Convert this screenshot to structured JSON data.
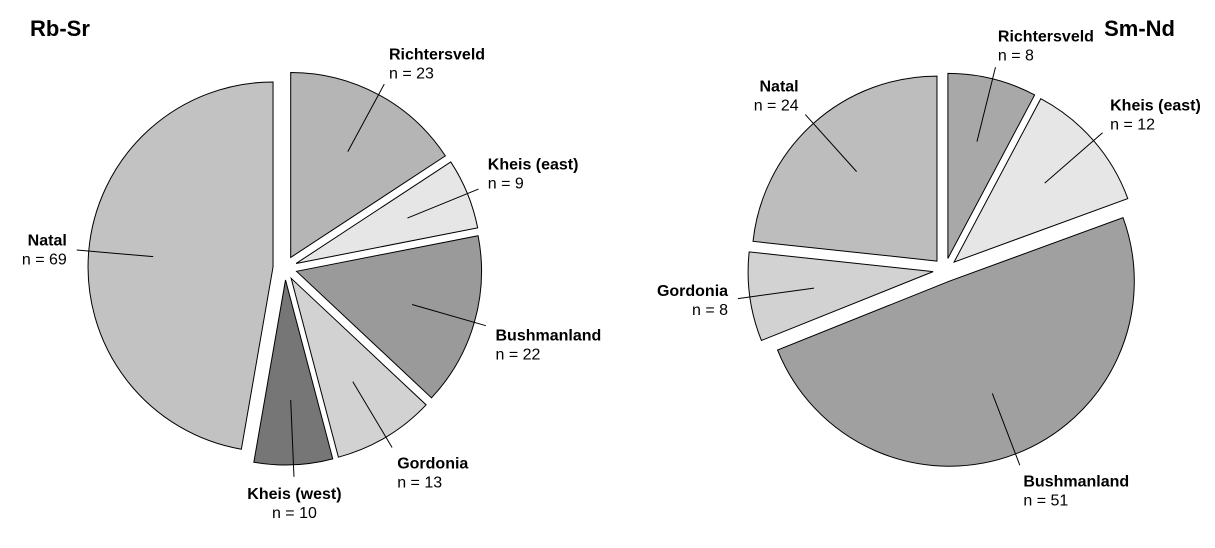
{
  "chart_data": [
    {
      "type": "pie",
      "title": "Rb-Sr",
      "categories": [
        "Richtersveld",
        "Kheis (east)",
        "Bushmanland",
        "Gordonia",
        "Kheis (west)",
        "Natal"
      ],
      "values": [
        23,
        9,
        22,
        13,
        10,
        69
      ],
      "value_labels": [
        "n = 23",
        "n = 9",
        "n = 22",
        "n = 13",
        "n = 10",
        "n = 69"
      ],
      "colors": [
        "#b5b5b5",
        "#e6e6e6",
        "#9a9a9a",
        "#d2d2d2",
        "#767676",
        "#c2c2c2"
      ]
    },
    {
      "type": "pie",
      "title": "Sm-Nd",
      "categories": [
        "Richtersveld",
        "Kheis (east)",
        "Bushmanland",
        "Gordonia",
        "Natal"
      ],
      "values": [
        8,
        12,
        51,
        8,
        24
      ],
      "value_labels": [
        "n = 8",
        "n = 12",
        "n = 51",
        "n = 8",
        "n = 24"
      ],
      "colors": [
        "#a8a8a8",
        "#e6e6e6",
        "#a0a0a0",
        "#d2d2d2",
        "#bdbdbd"
      ]
    }
  ]
}
